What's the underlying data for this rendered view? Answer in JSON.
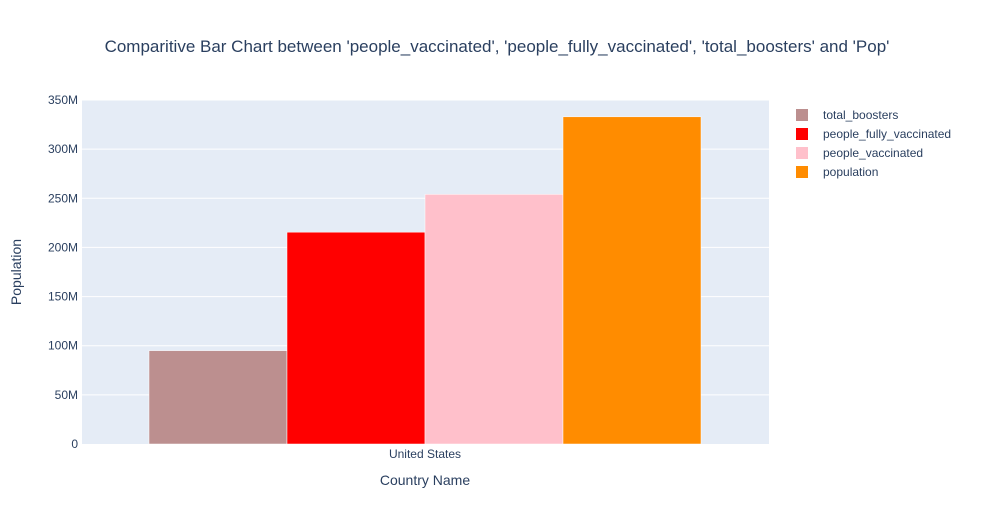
{
  "chart_data": {
    "type": "bar",
    "title": "Comparitive Bar Chart between 'people_vaccinated', 'people_fully_vaccinated', 'total_boosters' and 'Pop'",
    "xlabel": "Country Name",
    "ylabel": "Population",
    "categories": [
      "United States"
    ],
    "ylim": [
      0,
      350000000
    ],
    "yticks": [
      {
        "value": 0,
        "label": "0"
      },
      {
        "value": 50000000,
        "label": "50M"
      },
      {
        "value": 100000000,
        "label": "100M"
      },
      {
        "value": 150000000,
        "label": "150M"
      },
      {
        "value": 200000000,
        "label": "200M"
      },
      {
        "value": 250000000,
        "label": "250M"
      },
      {
        "value": 300000000,
        "label": "300M"
      },
      {
        "value": 350000000,
        "label": "350M"
      }
    ],
    "grid": true,
    "legend_position": "top-right",
    "series": [
      {
        "name": "total_boosters",
        "color": "#bc8f8f",
        "values": [
          95000000
        ]
      },
      {
        "name": "people_fully_vaccinated",
        "color": "#ff0000",
        "values": [
          215500000
        ]
      },
      {
        "name": "people_vaccinated",
        "color": "#ffc0cb",
        "values": [
          254000000
        ]
      },
      {
        "name": "population",
        "color": "#ff8c00",
        "values": [
          332900000
        ]
      }
    ]
  },
  "colors": {
    "plot_background": "#e5ecf6",
    "grid": "#ffffff",
    "text": "#2a3f5f"
  }
}
